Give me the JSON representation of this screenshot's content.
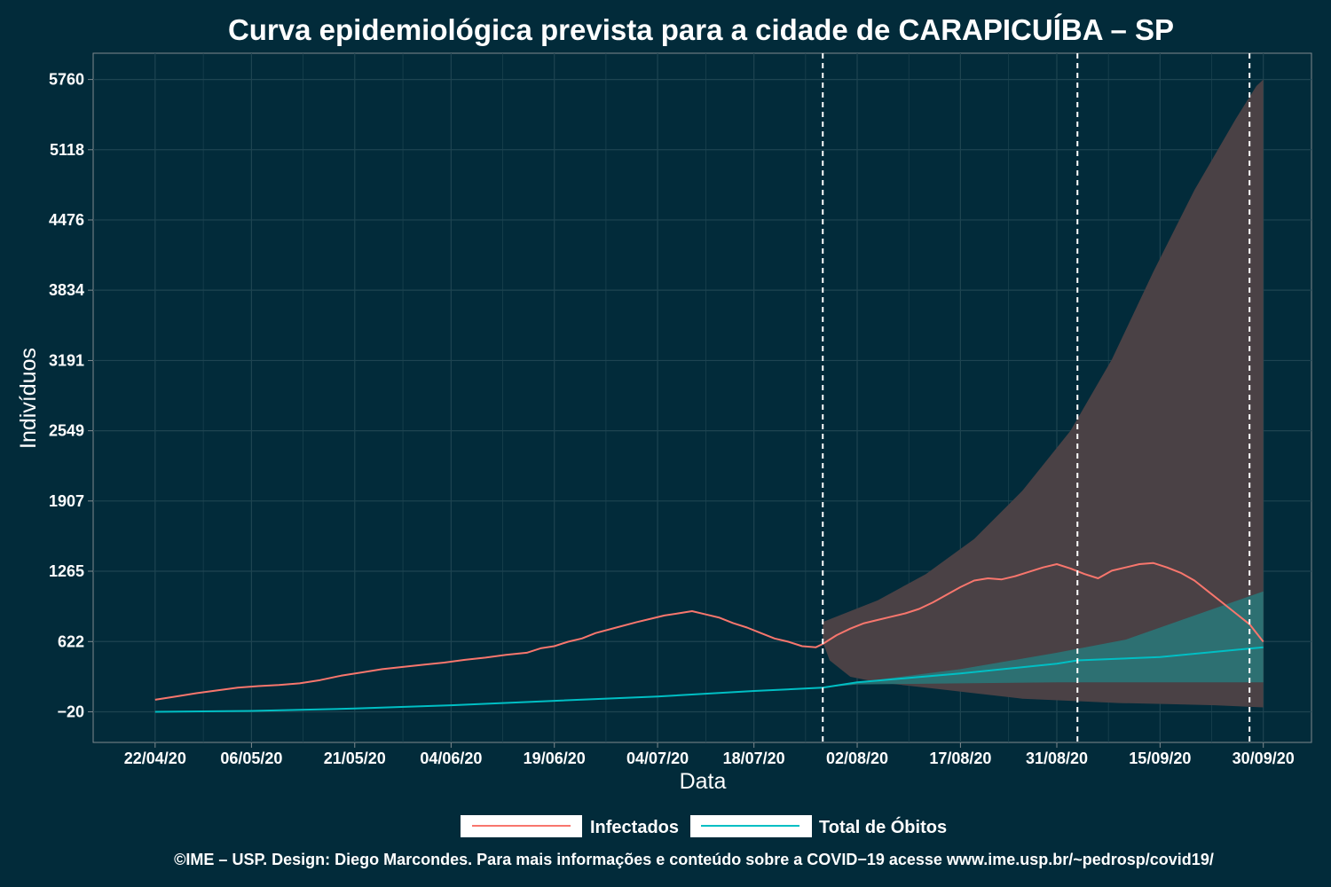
{
  "chart_data": {
    "type": "line",
    "title": "Curva epidemiológica prevista para a cidade de CARAPICUÍBA – SP",
    "xlabel": "Data",
    "ylabel": "Indivíduos",
    "x_ticks": [
      "22/04/20",
      "06/05/20",
      "21/05/20",
      "04/06/20",
      "19/06/20",
      "04/07/20",
      "18/07/20",
      "02/08/20",
      "17/08/20",
      "31/08/20",
      "15/09/20",
      "30/09/20"
    ],
    "x_tick_dates": [
      "2020-04-22",
      "2020-05-06",
      "2020-05-21",
      "2020-06-04",
      "2020-06-19",
      "2020-07-04",
      "2020-07-18",
      "2020-08-02",
      "2020-08-17",
      "2020-08-31",
      "2020-09-15",
      "2020-09-30"
    ],
    "y_ticks": [
      "5760",
      "5118",
      "4476",
      "3834",
      "3191",
      "2549",
      "1907",
      "1265",
      "622",
      "−20"
    ],
    "y_tick_values": [
      5760,
      5118,
      4476,
      3834,
      3191,
      2549,
      1907,
      1265,
      622,
      -20
    ],
    "ylim": [
      -300,
      6000
    ],
    "xlim": [
      "2020-04-13",
      "2020-10-07"
    ],
    "grid": true,
    "legend_position": "bottom",
    "vlines": [
      "2020-07-28",
      "2020-09-03",
      "2020-09-28"
    ],
    "series": [
      {
        "name": "Infectados",
        "color": "#f8766d",
        "points": [
          [
            "2020-04-22",
            90
          ],
          [
            "2020-04-25",
            120
          ],
          [
            "2020-04-28",
            150
          ],
          [
            "2020-05-01",
            175
          ],
          [
            "2020-05-04",
            200
          ],
          [
            "2020-05-07",
            215
          ],
          [
            "2020-05-10",
            225
          ],
          [
            "2020-05-13",
            240
          ],
          [
            "2020-05-16",
            270
          ],
          [
            "2020-05-19",
            310
          ],
          [
            "2020-05-22",
            340
          ],
          [
            "2020-05-25",
            370
          ],
          [
            "2020-05-28",
            390
          ],
          [
            "2020-05-31",
            410
          ],
          [
            "2020-06-03",
            430
          ],
          [
            "2020-06-06",
            455
          ],
          [
            "2020-06-09",
            475
          ],
          [
            "2020-06-12",
            500
          ],
          [
            "2020-06-15",
            520
          ],
          [
            "2020-06-17",
            560
          ],
          [
            "2020-06-19",
            580
          ],
          [
            "2020-06-21",
            620
          ],
          [
            "2020-06-23",
            650
          ],
          [
            "2020-06-25",
            700
          ],
          [
            "2020-06-28",
            750
          ],
          [
            "2020-07-01",
            800
          ],
          [
            "2020-07-03",
            830
          ],
          [
            "2020-07-05",
            860
          ],
          [
            "2020-07-07",
            880
          ],
          [
            "2020-07-09",
            900
          ],
          [
            "2020-07-11",
            870
          ],
          [
            "2020-07-13",
            840
          ],
          [
            "2020-07-15",
            790
          ],
          [
            "2020-07-17",
            750
          ],
          [
            "2020-07-19",
            700
          ],
          [
            "2020-07-21",
            650
          ],
          [
            "2020-07-23",
            620
          ],
          [
            "2020-07-25",
            580
          ],
          [
            "2020-07-27",
            570
          ],
          [
            "2020-07-28",
            600
          ],
          [
            "2020-07-30",
            680
          ],
          [
            "2020-08-01",
            740
          ],
          [
            "2020-08-03",
            790
          ],
          [
            "2020-08-05",
            820
          ],
          [
            "2020-08-07",
            850
          ],
          [
            "2020-08-09",
            880
          ],
          [
            "2020-08-11",
            920
          ],
          [
            "2020-08-13",
            980
          ],
          [
            "2020-08-15",
            1050
          ],
          [
            "2020-08-17",
            1120
          ],
          [
            "2020-08-19",
            1180
          ],
          [
            "2020-08-21",
            1200
          ],
          [
            "2020-08-23",
            1190
          ],
          [
            "2020-08-25",
            1220
          ],
          [
            "2020-08-27",
            1260
          ],
          [
            "2020-08-29",
            1300
          ],
          [
            "2020-08-31",
            1330
          ],
          [
            "2020-09-02",
            1290
          ],
          [
            "2020-09-04",
            1240
          ],
          [
            "2020-09-06",
            1200
          ],
          [
            "2020-09-08",
            1270
          ],
          [
            "2020-09-10",
            1300
          ],
          [
            "2020-09-12",
            1330
          ],
          [
            "2020-09-14",
            1340
          ],
          [
            "2020-09-16",
            1300
          ],
          [
            "2020-09-18",
            1250
          ],
          [
            "2020-09-20",
            1180
          ],
          [
            "2020-09-22",
            1080
          ],
          [
            "2020-09-24",
            980
          ],
          [
            "2020-09-26",
            880
          ],
          [
            "2020-09-28",
            780
          ],
          [
            "2020-09-30",
            620
          ]
        ]
      },
      {
        "name": "Total de Óbitos",
        "color": "#00bfc4",
        "points": [
          [
            "2020-04-22",
            -20
          ],
          [
            "2020-05-06",
            -12
          ],
          [
            "2020-05-21",
            10
          ],
          [
            "2020-06-04",
            40
          ],
          [
            "2020-06-19",
            80
          ],
          [
            "2020-07-04",
            120
          ],
          [
            "2020-07-18",
            170
          ],
          [
            "2020-07-28",
            200
          ],
          [
            "2020-08-02",
            250
          ],
          [
            "2020-08-17",
            330
          ],
          [
            "2020-08-31",
            420
          ],
          [
            "2020-09-03",
            450
          ],
          [
            "2020-09-15",
            480
          ],
          [
            "2020-09-30",
            570
          ]
        ]
      }
    ],
    "bands": [
      {
        "name": "Infectados",
        "color": "#4a4145",
        "upper": [
          [
            "2020-07-28",
            800
          ],
          [
            "2020-08-05",
            1000
          ],
          [
            "2020-08-12",
            1240
          ],
          [
            "2020-08-19",
            1560
          ],
          [
            "2020-08-26",
            2000
          ],
          [
            "2020-09-02",
            2550
          ],
          [
            "2020-09-08",
            3200
          ],
          [
            "2020-09-14",
            4000
          ],
          [
            "2020-09-20",
            4750
          ],
          [
            "2020-09-26",
            5400
          ],
          [
            "2020-09-29",
            5700
          ],
          [
            "2020-09-30",
            5760
          ]
        ],
        "lower": [
          [
            "2020-07-28",
            620
          ],
          [
            "2020-07-29",
            450
          ],
          [
            "2020-08-01",
            300
          ],
          [
            "2020-08-05",
            250
          ],
          [
            "2020-08-12",
            200
          ],
          [
            "2020-08-19",
            150
          ],
          [
            "2020-08-26",
            100
          ],
          [
            "2020-09-02",
            80
          ],
          [
            "2020-09-09",
            60
          ],
          [
            "2020-09-16",
            50
          ],
          [
            "2020-09-23",
            40
          ],
          [
            "2020-09-30",
            20
          ]
        ]
      },
      {
        "name": "Total de Óbitos",
        "color": "#2a7577",
        "upper": [
          [
            "2020-07-28",
            200
          ],
          [
            "2020-08-02",
            250
          ],
          [
            "2020-08-17",
            370
          ],
          [
            "2020-08-31",
            520
          ],
          [
            "2020-09-10",
            640
          ],
          [
            "2020-09-20",
            860
          ],
          [
            "2020-09-30",
            1080
          ]
        ],
        "lower": [
          [
            "2020-07-28",
            200
          ],
          [
            "2020-08-02",
            230
          ],
          [
            "2020-08-17",
            240
          ],
          [
            "2020-08-31",
            250
          ],
          [
            "2020-09-15",
            250
          ],
          [
            "2020-09-30",
            250
          ]
        ]
      }
    ]
  },
  "legend": [
    {
      "label": "Infectados",
      "color": "#f8766d"
    },
    {
      "label": "Total de Óbitos",
      "color": "#00bfc4"
    }
  ],
  "caption": "©IME – USP. Design: Diego Marcondes. Para mais informações e conteúdo sobre a COVID−19 acesse www.ime.usp.br/~pedrosp/covid19/",
  "colors": {
    "background": "#022b3a",
    "panel_border": "#808a8f",
    "grid": "#1e4451",
    "vline": "#ffffff"
  }
}
